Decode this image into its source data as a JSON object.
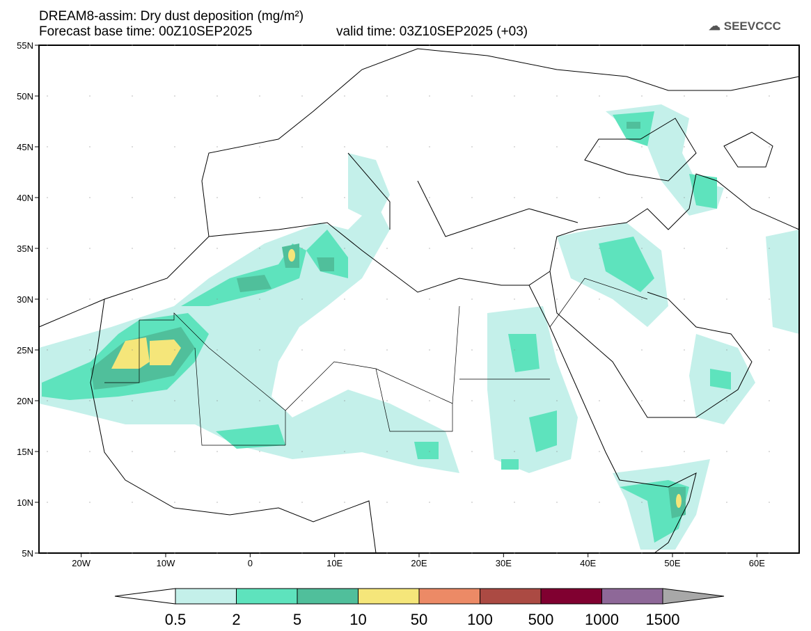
{
  "title": {
    "line1": "DREAM8-assim: Dry dust deposition (mg/m²)",
    "base": "Forecast base time: 00Z10SEP2025",
    "valid": "valid time: 03Z10SEP2025 (+03)"
  },
  "logo": "SEEVCCC",
  "map": {
    "lon_range": [
      -25,
      65
    ],
    "lat_range": [
      5,
      55
    ],
    "lat_ticks": [
      {
        "v": 55,
        "l": "55N"
      },
      {
        "v": 50,
        "l": "50N"
      },
      {
        "v": 45,
        "l": "45N"
      },
      {
        "v": 40,
        "l": "40N"
      },
      {
        "v": 35,
        "l": "35N"
      },
      {
        "v": 30,
        "l": "30N"
      },
      {
        "v": 25,
        "l": "25N"
      },
      {
        "v": 20,
        "l": "20N"
      },
      {
        "v": 15,
        "l": "15N"
      },
      {
        "v": 10,
        "l": "10N"
      },
      {
        "v": 5,
        "l": "5N"
      }
    ],
    "lon_ticks": [
      {
        "v": -20,
        "l": "20W"
      },
      {
        "v": -10,
        "l": "10W"
      },
      {
        "v": 0,
        "l": "0"
      },
      {
        "v": 10,
        "l": "10E"
      },
      {
        "v": 20,
        "l": "20E"
      },
      {
        "v": 30,
        "l": "30E"
      },
      {
        "v": 40,
        "l": "40E"
      },
      {
        "v": 50,
        "l": "50E"
      },
      {
        "v": 60,
        "l": "60E"
      }
    ]
  },
  "colorbar": {
    "labels": [
      "0.5",
      "2",
      "5",
      "10",
      "50",
      "100",
      "500",
      "1000",
      "1500"
    ],
    "colors": [
      "#c4f0ea",
      "#5ee3bd",
      "#50bf9b",
      "#f5e67a",
      "#ec8a66",
      "#ab4a43",
      "#800030",
      "#8e6898"
    ],
    "over": "#a8a8a8"
  },
  "colors": {
    "l1": "#c4f0ea",
    "l2": "#5ee3bd",
    "l3": "#50bf9b",
    "l4": "#f5e67a"
  }
}
